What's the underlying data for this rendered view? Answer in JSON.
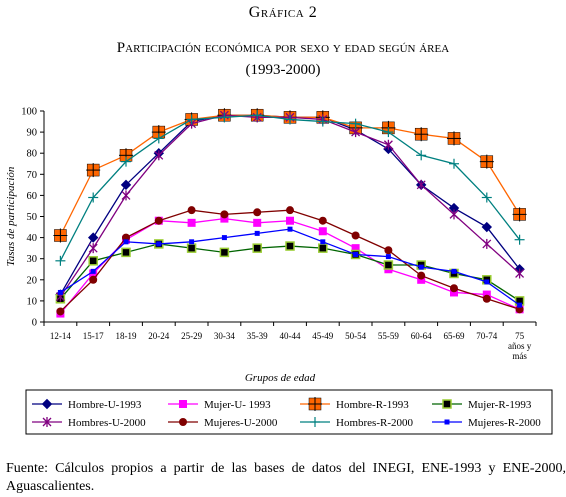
{
  "header": {
    "figure_label": "Gráfica 2",
    "title": "Participación económica por sexo y edad según área",
    "subtitle": "(1993-2000)"
  },
  "footer": {
    "source": "Fuente: Cálculos propios a partir de las bases de datos del INEGI, ENE-1993 y ENE-2000, Aguascalientes."
  },
  "chart_data": {
    "type": "line",
    "xlabel": "Grupos de edad",
    "ylabel": "Tasas de participación",
    "ylim": [
      0,
      100
    ],
    "yticks": [
      0,
      10,
      20,
      30,
      40,
      50,
      60,
      70,
      80,
      90,
      100
    ],
    "grid": false,
    "legend_position": "bottom",
    "categories": [
      "12-14",
      "15-17",
      "18-19",
      "20-24",
      "25-29",
      "30-34",
      "35-39",
      "40-44",
      "45-49",
      "50-54",
      "55-59",
      "60-64",
      "65-69",
      "70-74",
      "75 años y más"
    ],
    "series": [
      {
        "name": "Hombre-U-1993",
        "color": "#000080",
        "marker": "diamond",
        "values": [
          13,
          40,
          65,
          80,
          95,
          98,
          98,
          97,
          97,
          91,
          82,
          65,
          54,
          45,
          25
        ]
      },
      {
        "name": "Mujer-U- 1993",
        "color": "#ff00ff",
        "marker": "square",
        "values": [
          4,
          23,
          39,
          48,
          47,
          49,
          47,
          48,
          43,
          35,
          25,
          20,
          14,
          13,
          6
        ]
      },
      {
        "name": "Hombre-R-1993",
        "color": "#ff6600",
        "marker": "plus-square",
        "values": [
          41,
          72,
          79,
          90,
          96,
          98,
          98,
          97,
          97,
          92,
          92,
          89,
          87,
          76,
          51
        ]
      },
      {
        "name": "Mujer-R-1993",
        "color": "#006400",
        "marker": "square-filled",
        "values": [
          11,
          29,
          33,
          37,
          35,
          33,
          35,
          36,
          35,
          32,
          27,
          27,
          23,
          20,
          10
        ]
      },
      {
        "name": "Hombres-U-2000",
        "color": "#800080",
        "marker": "star",
        "values": [
          12,
          35,
          60,
          79,
          94,
          98,
          97,
          97,
          96,
          90,
          84,
          65,
          51,
          37,
          23
        ]
      },
      {
        "name": "Mujeres-U-2000",
        "color": "#800000",
        "marker": "circle",
        "values": [
          5,
          20,
          40,
          48,
          53,
          51,
          52,
          53,
          48,
          41,
          34,
          22,
          16,
          11,
          6
        ]
      },
      {
        "name": "Hombres-R-2000",
        "color": "#008080",
        "marker": "plus",
        "values": [
          29,
          59,
          76,
          87,
          96,
          97,
          98,
          96,
          95,
          94,
          90,
          79,
          75,
          59,
          39
        ]
      },
      {
        "name": "Mujeres-R-2000",
        "color": "#0000ff",
        "marker": "small-square",
        "values": [
          14,
          24,
          38,
          37,
          38,
          40,
          42,
          44,
          38,
          32,
          31,
          26,
          24,
          19,
          8
        ]
      }
    ]
  }
}
